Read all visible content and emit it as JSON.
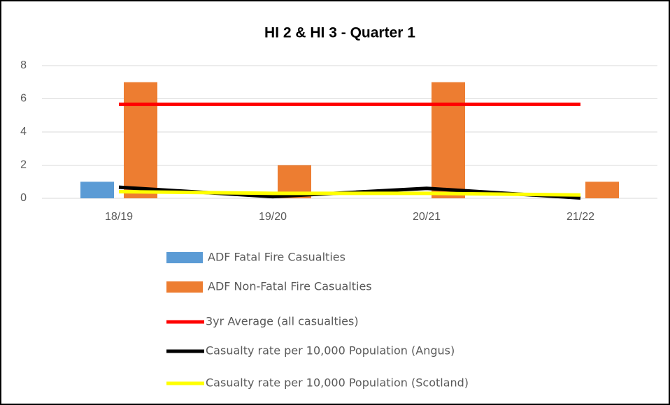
{
  "chart_data": {
    "type": "combo",
    "title": "HI 2 & HI 3 - Quarter 1",
    "categories": [
      "18/19",
      "19/20",
      "20/21",
      "21/22"
    ],
    "series": [
      {
        "name": "ADF Fatal Fire Casualties",
        "type": "bar",
        "color": "#5b9bd5",
        "values": [
          1,
          0,
          0,
          0
        ]
      },
      {
        "name": "ADF Non-Fatal Fire Casualties",
        "type": "bar",
        "color": "#ed7d31",
        "values": [
          7,
          2,
          7,
          1
        ]
      },
      {
        "name": "3yr Average (all casualties)",
        "type": "line",
        "color": "#ff0000",
        "values": [
          5.67,
          5.67,
          5.67,
          5.67
        ]
      },
      {
        "name": "Casualty rate per 10,000 Population (Angus)",
        "type": "line",
        "color": "#000000",
        "values": [
          0.67,
          0.1,
          0.6,
          0.02
        ]
      },
      {
        "name": "Casualty rate per 10,000 Population (Scotland)",
        "type": "line",
        "color": "#ffff00",
        "values": [
          0.4,
          0.3,
          0.3,
          0.2
        ]
      }
    ],
    "ylim": [
      0,
      8
    ],
    "yticks": [
      0,
      2,
      4,
      6,
      8
    ],
    "grid": true,
    "legend": "bottom"
  }
}
